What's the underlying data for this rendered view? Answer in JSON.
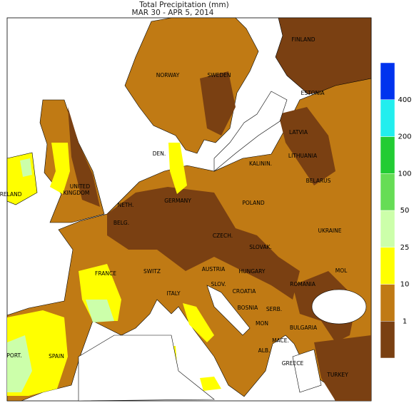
{
  "title": "Total Precipitation (mm)",
  "subtitle": "MAR 30 - APR  5, 2014",
  "map": {
    "labels": [
      "FINLAND",
      "NORWAY",
      "SWEDEN",
      "ESTONIA",
      "LATVIA",
      "LITHUANIA",
      "DEN.",
      "KALININ.",
      "BELARUS",
      "UNITED",
      "KINGDOM",
      "IRELAND",
      "NETH.",
      "BELG.",
      "GERMANY",
      "POLAND",
      "UKRAINE",
      "CZECH.",
      "SLOVAK.",
      "FRANCE",
      "SWITZ",
      "AUSTRIA",
      "HUNGARY",
      "MOL",
      "ROMANIA",
      "ITALY",
      "SLOV.",
      "CROATIA",
      "BOSNIA",
      "SERB.",
      "MON",
      "BULGARIA",
      "MACE.",
      "ALB.",
      "GREECE",
      "PORT.",
      "SPAIN",
      "TURKEY"
    ]
  },
  "legend": {
    "ticks": [
      1,
      10,
      25,
      50,
      100,
      200,
      400
    ],
    "colors": [
      "#7a4012",
      "#c07a14",
      "#ffff00",
      "#ccffaa",
      "#66dd55",
      "#22cc33",
      "#22eeee",
      "#0033ee"
    ]
  }
}
